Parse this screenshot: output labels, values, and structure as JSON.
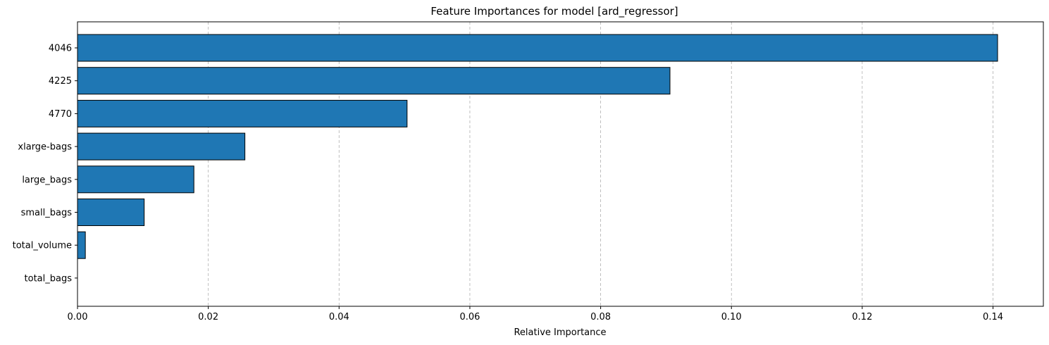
{
  "chart_data": {
    "type": "bar",
    "orientation": "horizontal",
    "title": "Feature Importances for model [ard_regressor]",
    "xlabel": "Relative Importance",
    "ylabel": "",
    "categories": [
      "4046",
      "4225",
      "4770",
      "xlarge-bags",
      "large_bags",
      "small_bags",
      "total_volume",
      "total_bags"
    ],
    "values": [
      0.1407,
      0.0906,
      0.0504,
      0.0256,
      0.0178,
      0.0102,
      0.0012,
      0.0
    ],
    "xlim": [
      0,
      0.1477
    ],
    "xticks": [
      0.0,
      0.02,
      0.04,
      0.06,
      0.08,
      0.1,
      0.12,
      0.14
    ],
    "xtick_labels": [
      "0.00",
      "0.02",
      "0.04",
      "0.06",
      "0.08",
      "0.10",
      "0.12",
      "0.14"
    ],
    "grid": "x-axis dashed",
    "bar_color": "#1f77b4",
    "edge_color": "#000000",
    "grid_color": "#b0b0b0"
  }
}
